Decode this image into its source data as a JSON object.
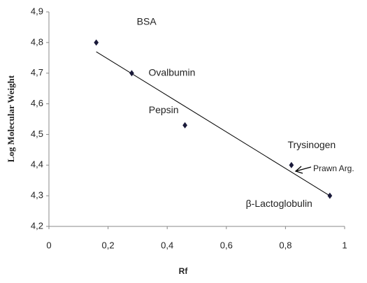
{
  "chart_data": {
    "type": "scatter",
    "x_label": "Rf",
    "y_label": "Log Molecular Weight",
    "series": [
      {
        "labels": [
          "BSA",
          "Ovalbumin",
          "Pepsin",
          "Trysinogen",
          "β-Lactoglobulin"
        ],
        "color": "#1a1a3a",
        "x": [
          0.16,
          0.28,
          0.46,
          0.82,
          0.95
        ],
        "values": [
          4.8,
          4.7,
          4.53,
          4.4,
          4.3
        ]
      }
    ],
    "trendline": {
      "x": [
        0.16,
        0.95
      ],
      "y": [
        4.77,
        4.3
      ],
      "color": "#000000"
    },
    "annotation": "Prawn Arg.",
    "xlim": [
      0,
      1
    ],
    "xticks": [
      0,
      {
        "value": 0.2,
        "label": "0,2"
      },
      {
        "value": 0.4,
        "label": "0,4"
      },
      {
        "value": 0.6,
        "label": "0,6"
      },
      {
        "value": 0.8,
        "label": "0,8"
      },
      1
    ],
    "ylim": [
      4.2,
      4.9
    ],
    "yticks": [
      {
        "value": 4.2,
        "label": "4,2"
      },
      {
        "value": 4.3,
        "label": "4,3"
      },
      {
        "value": 4.4,
        "label": "4,4"
      },
      {
        "value": 4.5,
        "label": "4,5"
      },
      {
        "value": 4.6,
        "label": "4,6"
      },
      {
        "value": 4.7,
        "label": "4,7"
      },
      {
        "value": 4.8,
        "label": "4,8"
      },
      {
        "value": 4.9,
        "label": "4,9"
      }
    ],
    "grid": false
  }
}
